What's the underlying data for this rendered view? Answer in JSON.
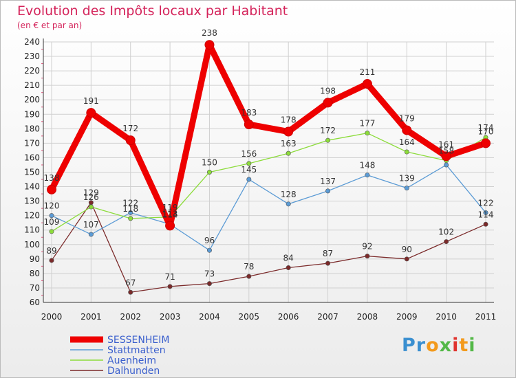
{
  "title": "Evolution des Impôts locaux par Habitant",
  "subtitle": "(en € et par an)",
  "logo": {
    "text": "Proxiti",
    "parts": [
      "Pr",
      "o",
      "x",
      "i",
      "t",
      "i"
    ]
  },
  "colors": {
    "title": "#d4235a",
    "SESSENHEIM": "#ee0000",
    "Stattmatten": "#5b9bd5",
    "Auenheim": "#8cdc3a",
    "Dalhunden": "#7b2a2a",
    "legend_text": "#3a5fcd"
  },
  "chart_data": {
    "type": "line",
    "title": "Evolution des Impôts locaux par Habitant",
    "subtitle": "(en € et par an)",
    "xlabel": "",
    "ylabel": "",
    "x": [
      "2000",
      "2001",
      "2002",
      "2003",
      "2004",
      "2005",
      "2006",
      "2007",
      "2008",
      "2009",
      "2010",
      "2011"
    ],
    "ylim": [
      60,
      240
    ],
    "yticks": [
      60,
      70,
      80,
      90,
      100,
      110,
      120,
      130,
      140,
      150,
      160,
      170,
      180,
      190,
      200,
      210,
      220,
      230,
      240
    ],
    "grid": true,
    "legend_position": "bottom-left",
    "series": [
      {
        "name": "SESSENHEIM",
        "values": [
          138,
          191,
          172,
          113,
          238,
          183,
          178,
          198,
          211,
          179,
          161,
          170
        ],
        "labels": [
          "138",
          "191",
          "172",
          "113",
          "238",
          "183",
          "178",
          "198",
          "211",
          "179",
          "161",
          "170"
        ]
      },
      {
        "name": "Stattmatten",
        "values": [
          120,
          107,
          122,
          114,
          96,
          145,
          128,
          137,
          148,
          139,
          155,
          122
        ],
        "labels": [
          "120",
          "107",
          "122",
          "114",
          "96",
          "145",
          "128",
          "137",
          "148",
          "139",
          "",
          "122"
        ]
      },
      {
        "name": "Auenheim",
        "values": [
          109,
          126,
          118,
          119,
          150,
          156,
          163,
          172,
          177,
          164,
          158,
          174
        ],
        "labels": [
          "109",
          "126",
          "118",
          "119",
          "150",
          "156",
          "163",
          "172",
          "177",
          "164",
          "158",
          "174"
        ]
      },
      {
        "name": "Dalhunden",
        "values": [
          89,
          129,
          67,
          71,
          73,
          78,
          84,
          87,
          92,
          90,
          102,
          114
        ],
        "labels": [
          "89",
          "129",
          "67",
          "71",
          "73",
          "78",
          "84",
          "87",
          "92",
          "90",
          "102",
          "114"
        ]
      }
    ]
  }
}
